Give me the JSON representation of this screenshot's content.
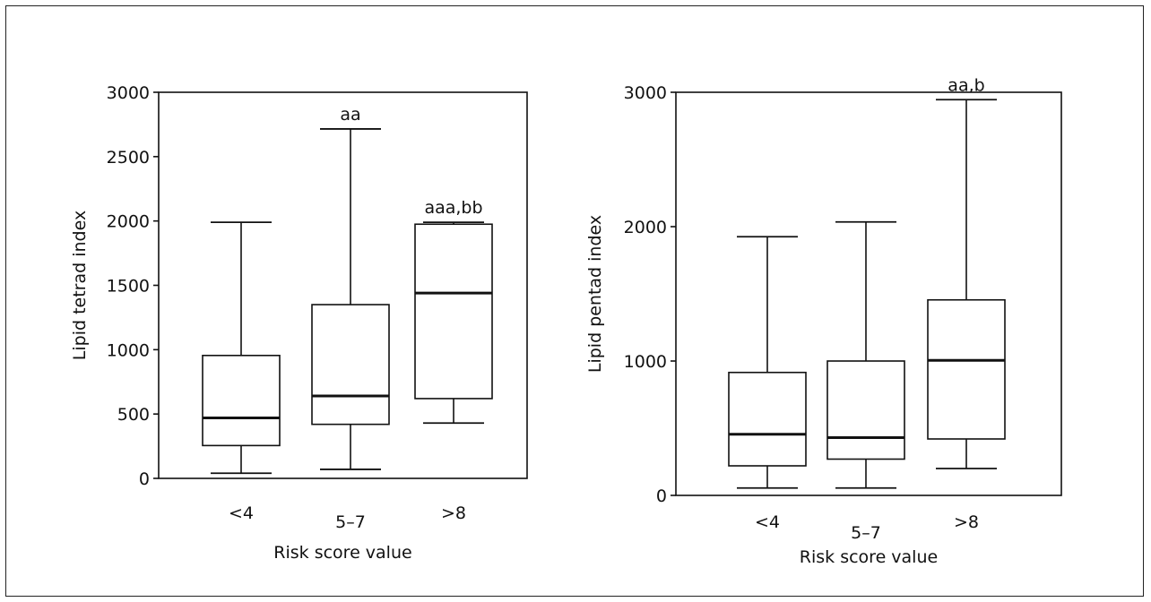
{
  "chart_data": [
    {
      "type": "box",
      "xlabel": "Risk score value",
      "ylabel": "Lipid tetrad index",
      "ylim": [
        0,
        3000
      ],
      "yticks": [
        "0",
        "500",
        "1000",
        "1500",
        "2000",
        "2500",
        "3000"
      ],
      "ytick_values": [
        0,
        500,
        1000,
        1500,
        2000,
        2500,
        3000
      ],
      "categories": [
        "<4",
        "5–7",
        ">8"
      ],
      "boxes": [
        {
          "min": 40,
          "q1": 255,
          "median": 470,
          "q3": 955,
          "max": 1990,
          "annotation": ""
        },
        {
          "min": 70,
          "q1": 420,
          "median": 640,
          "q3": 1350,
          "max": 2715,
          "annotation": "aa"
        },
        {
          "min": 430,
          "q1": 620,
          "median": 1440,
          "q3": 1975,
          "max": 1990,
          "annotation": "aaa,bb"
        }
      ]
    },
    {
      "type": "box",
      "xlabel": "Risk score value",
      "ylabel": "Lipid pentad index",
      "ylim": [
        0,
        3000
      ],
      "yticks": [
        "0",
        "1000",
        "2000",
        "3000"
      ],
      "ytick_values": [
        0,
        1000,
        2000,
        3000
      ],
      "categories": [
        "<4",
        "5–7",
        ">8"
      ],
      "boxes": [
        {
          "min": 55,
          "q1": 220,
          "median": 455,
          "q3": 915,
          "max": 1925,
          "annotation": ""
        },
        {
          "min": 55,
          "q1": 270,
          "median": 430,
          "q3": 1000,
          "max": 2035,
          "annotation": ""
        },
        {
          "min": 200,
          "q1": 420,
          "median": 1005,
          "q3": 1455,
          "max": 2945,
          "annotation": "aa,b"
        }
      ]
    }
  ]
}
